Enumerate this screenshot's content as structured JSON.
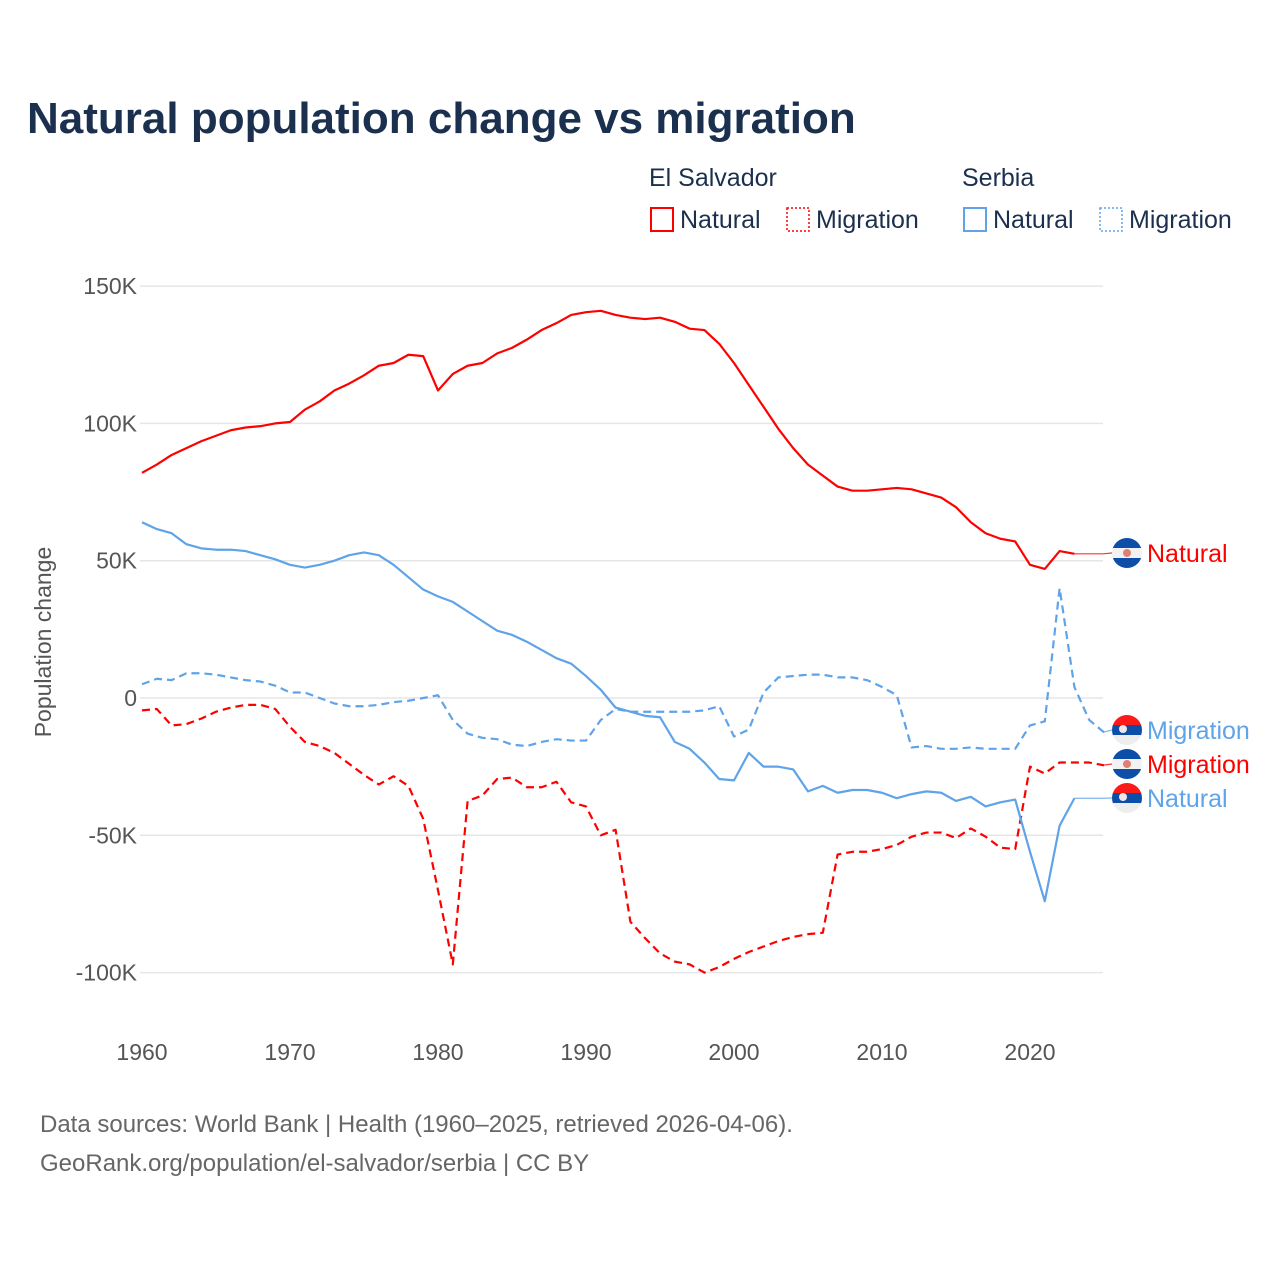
{
  "chart_data": {
    "type": "line",
    "title": "Natural population change vs migration",
    "ylabel": "Population change",
    "xlabel": "",
    "ylim": [
      -100000,
      150000
    ],
    "xlim": [
      1960,
      2025
    ],
    "grid": true,
    "y_ticks": [
      {
        "value": 150000,
        "label": "150K"
      },
      {
        "value": 100000,
        "label": "100K"
      },
      {
        "value": 50000,
        "label": "50K"
      },
      {
        "value": 0,
        "label": "0"
      },
      {
        "value": -50000,
        "label": "-50K"
      },
      {
        "value": -100000,
        "label": "-100K"
      }
    ],
    "x_ticks": [
      "1960",
      "1970",
      "1980",
      "1990",
      "2000",
      "2010",
      "2020"
    ],
    "legend": {
      "placement": "top-right",
      "groups": [
        {
          "country": "El Salvador",
          "items": [
            "Natural",
            "Migration"
          ]
        },
        {
          "country": "Serbia",
          "items": [
            "Natural",
            "Migration"
          ]
        }
      ]
    },
    "series": [
      {
        "name": "El Salvador Natural",
        "country": "El Salvador",
        "kind": "Natural",
        "color": "#ff0000",
        "dash": false,
        "start": 1960,
        "end_label": "Natural",
        "values_k": [
          82,
          85,
          88.5,
          91,
          93.5,
          95.5,
          97.5,
          98.5,
          99,
          100,
          100.5,
          105,
          108,
          112,
          114.5,
          117.5,
          121,
          122,
          125,
          124.5,
          112,
          118,
          121,
          122,
          125.5,
          127.5,
          130.5,
          134,
          136.5,
          139.5,
          140.5,
          141,
          139.5,
          138.5,
          138,
          138.5,
          137,
          134.5,
          134,
          129,
          122,
          114,
          106,
          98,
          91,
          85,
          81,
          77,
          75.5,
          75.5,
          76,
          76.5,
          76,
          74.5,
          73,
          69.5,
          64,
          60,
          58,
          57,
          48.5,
          47,
          53.5,
          52.5
        ]
      },
      {
        "name": "Serbia Migration",
        "country": "Serbia",
        "kind": "Migration",
        "color": "#5fa3e8",
        "dash": true,
        "start": 1960,
        "end_label": "Migration",
        "values_k": [
          5,
          7,
          6.5,
          9,
          9,
          8.5,
          7.5,
          6.5,
          6,
          4.5,
          2,
          2,
          0,
          -2,
          -3,
          -3,
          -2.5,
          -1.5,
          -1,
          0,
          1,
          -8,
          -13,
          -14.5,
          -15,
          -17,
          -17.5,
          -16,
          -15,
          -15.5,
          -15.5,
          -8,
          -4,
          -5,
          -5,
          -5,
          -5,
          -5,
          -4.5,
          -3,
          -14,
          -11.5,
          2,
          7.5,
          8,
          8.5,
          8.5,
          7.5,
          7.5,
          6.5,
          4,
          1,
          -18,
          -17.5,
          -18.5,
          -18.5,
          -18,
          -18.5,
          -18.5,
          -18.5,
          -10,
          -8.5,
          40,
          4,
          -8,
          -12.5
        ]
      },
      {
        "name": "El Salvador Migration",
        "country": "El Salvador",
        "kind": "Migration",
        "color": "#ff0000",
        "dash": true,
        "start": 1960,
        "end_label": "Migration",
        "values_k": [
          -4.5,
          -4,
          -10,
          -9.5,
          -7.5,
          -5,
          -3.5,
          -2.5,
          -2.5,
          -4,
          -10.5,
          -16,
          -17.5,
          -20,
          -24,
          -28,
          -31.5,
          -28.5,
          -32,
          -44,
          -70,
          -97,
          -37.5,
          -35.5,
          -29.5,
          -29,
          -32.5,
          -32.5,
          -30.5,
          -38,
          -39.5,
          -50,
          -48,
          -81.5,
          -87.5,
          -93,
          -96,
          -97,
          -100,
          -98,
          -95,
          -92.5,
          -90.5,
          -88.5,
          -87,
          -86,
          -85.5,
          -57,
          -56,
          -56,
          -55,
          -53.5,
          -50.5,
          -49,
          -49,
          -51,
          -47.5,
          -50.5,
          -54.5,
          -55,
          -25,
          -27.5,
          -23.5,
          -23.5,
          -23.5,
          -24.5
        ]
      },
      {
        "name": "Serbia Natural",
        "country": "Serbia",
        "kind": "Natural",
        "color": "#5fa3e8",
        "dash": false,
        "start": 1960,
        "end_label": "Natural",
        "values_k": [
          64,
          61.5,
          60,
          56,
          54.5,
          54,
          54,
          53.5,
          52,
          50.5,
          48.5,
          47.5,
          48.5,
          50,
          52,
          53,
          52,
          48.5,
          44,
          39.5,
          37,
          35,
          31.5,
          28,
          24.5,
          23,
          20.5,
          17.5,
          14.5,
          12.5,
          8,
          3,
          -3.5,
          -5,
          -6.5,
          -7,
          -16,
          -18.5,
          -23.5,
          -29.5,
          -30,
          -20,
          -25,
          -25,
          -26,
          -34,
          -32,
          -34.5,
          -33.5,
          -33.5,
          -34.5,
          -36.5,
          -35,
          -34,
          -34.5,
          -37.5,
          -36,
          -39.5,
          -38,
          -37,
          -56,
          -74,
          -46.5,
          -36.5
        ]
      }
    ]
  },
  "footer": {
    "line1": "Data sources: World Bank | Health (1960–2025, retrieved 2026-04-06).",
    "line2": "GeoRank.org/population/el-salvador/serbia | CC BY"
  }
}
